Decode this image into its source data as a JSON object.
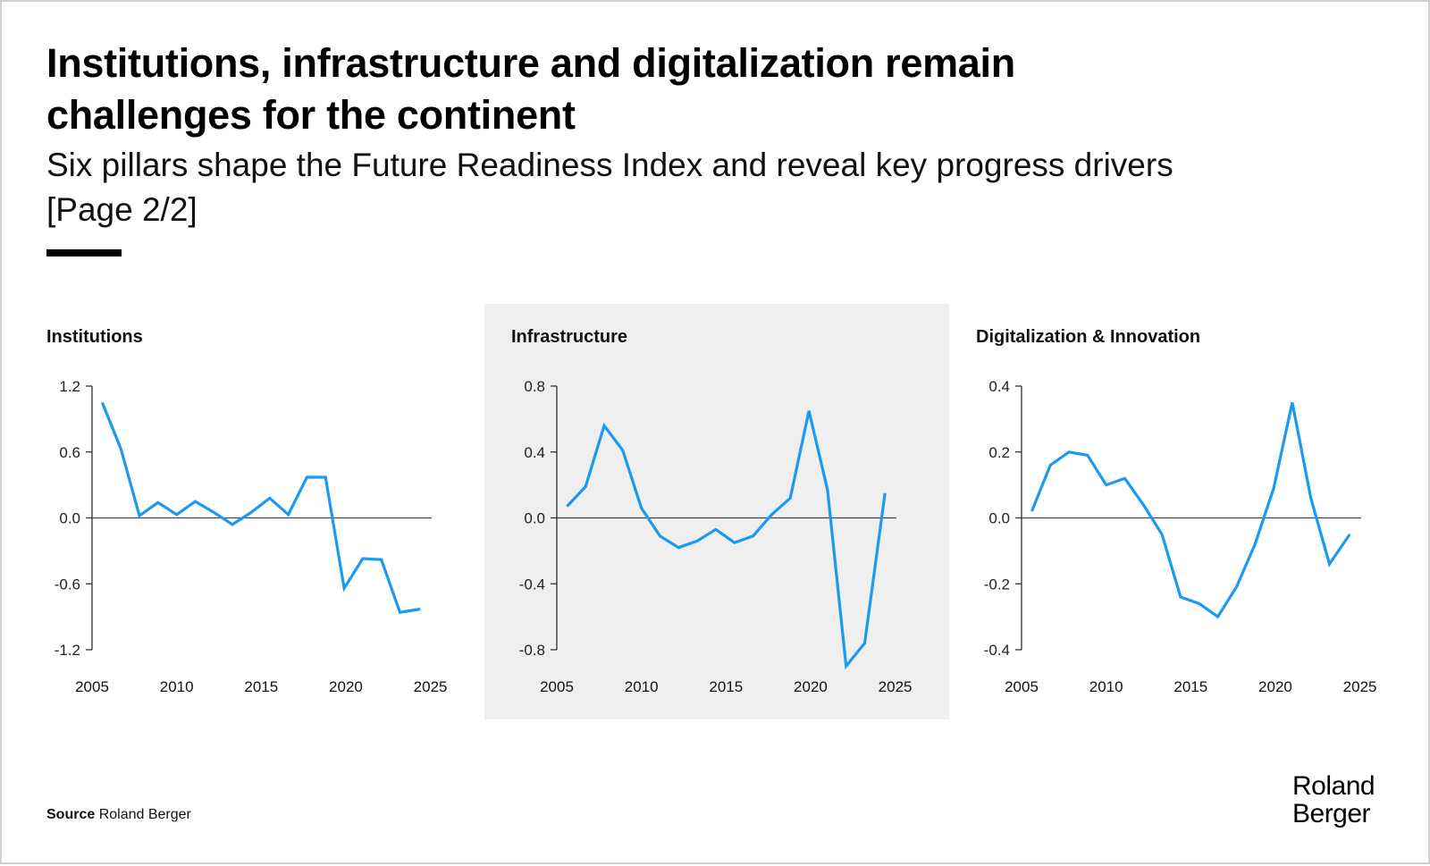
{
  "header": {
    "title_line1": "Institutions, infrastructure and digitalization remain",
    "title_line2": "challenges for the continent",
    "subtitle_line1": "Six pillars shape the Future Readiness Index and reveal key progress drivers",
    "subtitle_line2": "[Page 2/2]"
  },
  "footer": {
    "source_label": "Source",
    "source_value": "Roland Berger",
    "logo_line1": "Roland",
    "logo_line2": "Berger"
  },
  "colors": {
    "line": "#1a9af0",
    "axis": "#333333",
    "highlight_panel": "#efefef"
  },
  "chart_data": [
    {
      "type": "line",
      "title": "Institutions",
      "highlighted": false,
      "xlabel": "",
      "ylabel": "",
      "xlim": [
        2005,
        2025
      ],
      "ylim": [
        -1.2,
        1.2
      ],
      "xticks": [
        2005,
        2010,
        2015,
        2020,
        2025
      ],
      "xtick_labels": [
        "2005",
        "2010",
        "2015",
        "2020",
        "2025"
      ],
      "yticks": [
        1.2,
        0.6,
        0.0,
        -0.6,
        -1.2
      ],
      "ytick_labels": [
        "1.2",
        "0.6",
        "0.0",
        "-0.6",
        "-1.2"
      ],
      "zero_line": true,
      "grid": false,
      "x": [
        2005.6,
        2006.7,
        2007.8,
        2008.9,
        2010.0,
        2011.1,
        2012.2,
        2013.3,
        2014.4,
        2015.5,
        2016.6,
        2017.7,
        2018.8,
        2019.9,
        2021.0,
        2022.1,
        2023.2,
        2024.4
      ],
      "series": [
        {
          "name": "Institutions",
          "values": [
            1.05,
            0.63,
            0.02,
            0.14,
            0.03,
            0.15,
            0.05,
            -0.06,
            0.05,
            0.18,
            0.03,
            0.37,
            0.37,
            -0.64,
            -0.37,
            -0.38,
            -0.86,
            -0.83
          ]
        }
      ]
    },
    {
      "type": "line",
      "title": "Infrastructure",
      "highlighted": true,
      "xlabel": "",
      "ylabel": "",
      "xlim": [
        2005,
        2025
      ],
      "ylim": [
        -0.8,
        0.8
      ],
      "xticks": [
        2005,
        2010,
        2015,
        2020,
        2025
      ],
      "xtick_labels": [
        "2005",
        "2010",
        "2015",
        "2020",
        "2025"
      ],
      "yticks": [
        0.8,
        0.4,
        0.0,
        -0.4,
        -0.8
      ],
      "ytick_labels": [
        "0.8",
        "0.4",
        "0.0",
        "-0.4",
        "-0.8"
      ],
      "zero_line": true,
      "grid": false,
      "x": [
        2005.6,
        2006.7,
        2007.8,
        2008.9,
        2010.0,
        2011.1,
        2012.2,
        2013.3,
        2014.4,
        2015.5,
        2016.6,
        2017.7,
        2018.8,
        2019.9,
        2021.0,
        2022.1,
        2023.2,
        2024.4
      ],
      "series": [
        {
          "name": "Infrastructure",
          "values": [
            0.07,
            0.19,
            0.56,
            0.41,
            0.06,
            -0.11,
            -0.18,
            -0.14,
            -0.07,
            -0.15,
            -0.11,
            0.02,
            0.12,
            0.65,
            0.17,
            -0.9,
            -0.76,
            0.15
          ]
        }
      ]
    },
    {
      "type": "line",
      "title": "Digitalization & Innovation",
      "highlighted": false,
      "xlabel": "",
      "ylabel": "",
      "xlim": [
        2005,
        2025
      ],
      "ylim": [
        -0.4,
        0.4
      ],
      "xticks": [
        2005,
        2010,
        2015,
        2020,
        2025
      ],
      "xtick_labels": [
        "2005",
        "2010",
        "2015",
        "2020",
        "2025"
      ],
      "yticks": [
        0.4,
        0.2,
        0.0,
        -0.2,
        -0.4
      ],
      "ytick_labels": [
        "0.4",
        "0.2",
        "0.0",
        "-0.2",
        "-0.4"
      ],
      "zero_line": true,
      "grid": false,
      "x": [
        2005.6,
        2006.7,
        2007.8,
        2008.9,
        2010.0,
        2011.1,
        2012.2,
        2013.3,
        2014.4,
        2015.5,
        2016.6,
        2017.7,
        2018.8,
        2019.9,
        2021.0,
        2022.1,
        2023.2,
        2024.4
      ],
      "series": [
        {
          "name": "Digitalization & Innovation",
          "values": [
            0.02,
            0.16,
            0.2,
            0.19,
            0.1,
            0.12,
            0.04,
            -0.05,
            -0.24,
            -0.26,
            -0.3,
            -0.21,
            -0.08,
            0.09,
            0.35,
            0.06,
            -0.14,
            -0.05
          ]
        }
      ]
    }
  ]
}
